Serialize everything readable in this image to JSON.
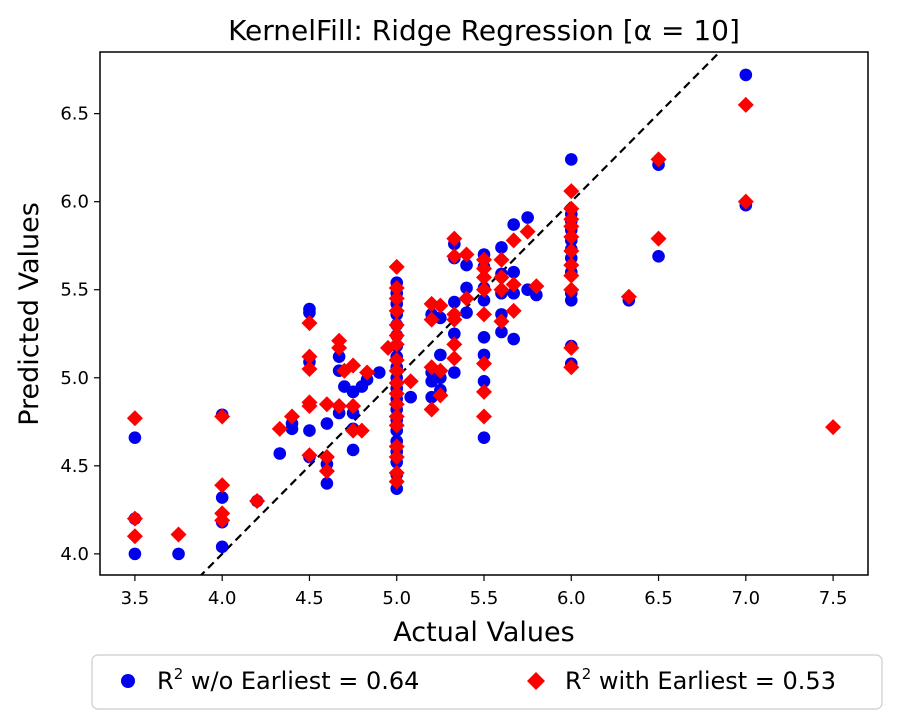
{
  "chart_data": {
    "type": "scatter",
    "title": "KernelFill: Ridge Regression [α = 10]",
    "xlabel": "Actual Values",
    "ylabel": "Predicted Values",
    "xlim": [
      3.3,
      7.7
    ],
    "ylim": [
      3.88,
      6.85
    ],
    "xticks": [
      "3.5",
      "4.0",
      "4.5",
      "5.0",
      "5.5",
      "6.0",
      "6.5",
      "7.0",
      "7.5"
    ],
    "yticks": [
      "4.0",
      "4.5",
      "5.0",
      "5.5",
      "6.0",
      "6.5"
    ],
    "reference_line": "y = x (dashed, black)",
    "grid": false,
    "legend_placement": "below plot",
    "legend": [
      {
        "pre": "R",
        "sup": "2",
        "post": " w/o Earliest = 0.64",
        "marker": "circle",
        "color": "#0000ee"
      },
      {
        "pre": "R",
        "sup": "2",
        "post": " with Earliest = 0.53",
        "marker": "diamond",
        "color": "#ff0000"
      }
    ],
    "series": [
      {
        "name": "R² w/o Earliest = 0.64",
        "marker": "circle",
        "color": "#0000ee",
        "points": [
          [
            3.5,
            4.0
          ],
          [
            3.5,
            4.2
          ],
          [
            3.5,
            4.66
          ],
          [
            3.75,
            4.0
          ],
          [
            4.0,
            4.04
          ],
          [
            4.0,
            4.18
          ],
          [
            4.0,
            4.32
          ],
          [
            4.0,
            4.79
          ],
          [
            4.2,
            4.3
          ],
          [
            4.33,
            4.57
          ],
          [
            4.4,
            4.71
          ],
          [
            4.4,
            4.74
          ],
          [
            4.5,
            4.55
          ],
          [
            4.5,
            4.7
          ],
          [
            4.5,
            5.09
          ],
          [
            4.5,
            5.37
          ],
          [
            4.5,
            5.39
          ],
          [
            4.6,
            4.4
          ],
          [
            4.6,
            4.51
          ],
          [
            4.6,
            4.74
          ],
          [
            4.67,
            4.8
          ],
          [
            4.67,
            5.04
          ],
          [
            4.67,
            5.12
          ],
          [
            4.7,
            4.95
          ],
          [
            4.75,
            4.59
          ],
          [
            4.75,
            4.71
          ],
          [
            4.75,
            4.8
          ],
          [
            4.75,
            4.92
          ],
          [
            4.8,
            4.95
          ],
          [
            4.83,
            4.99
          ],
          [
            4.9,
            5.03
          ],
          [
            5.0,
            4.37
          ],
          [
            5.0,
            4.45
          ],
          [
            5.0,
            4.52
          ],
          [
            5.0,
            4.58
          ],
          [
            5.0,
            4.64
          ],
          [
            5.0,
            4.7
          ],
          [
            5.0,
            4.76
          ],
          [
            5.0,
            4.82
          ],
          [
            5.0,
            4.88
          ],
          [
            5.0,
            4.94
          ],
          [
            5.0,
            5.0
          ],
          [
            5.0,
            5.06
          ],
          [
            5.0,
            5.12
          ],
          [
            5.0,
            5.18
          ],
          [
            5.0,
            5.24
          ],
          [
            5.0,
            5.3
          ],
          [
            5.0,
            5.36
          ],
          [
            5.0,
            5.42
          ],
          [
            5.0,
            5.48
          ],
          [
            5.0,
            5.54
          ],
          [
            5.08,
            4.89
          ],
          [
            5.2,
            4.89
          ],
          [
            5.2,
            4.98
          ],
          [
            5.2,
            5.03
          ],
          [
            5.2,
            5.36
          ],
          [
            5.25,
            4.93
          ],
          [
            5.25,
            5.0
          ],
          [
            5.25,
            5.13
          ],
          [
            5.25,
            5.34
          ],
          [
            5.33,
            5.03
          ],
          [
            5.33,
            5.25
          ],
          [
            5.33,
            5.43
          ],
          [
            5.33,
            5.68
          ],
          [
            5.33,
            5.76
          ],
          [
            5.4,
            5.37
          ],
          [
            5.4,
            5.51
          ],
          [
            5.4,
            5.64
          ],
          [
            5.5,
            4.66
          ],
          [
            5.5,
            4.98
          ],
          [
            5.5,
            5.13
          ],
          [
            5.5,
            5.23
          ],
          [
            5.5,
            5.44
          ],
          [
            5.5,
            5.51
          ],
          [
            5.5,
            5.63
          ],
          [
            5.5,
            5.7
          ],
          [
            5.6,
            5.26
          ],
          [
            5.6,
            5.36
          ],
          [
            5.6,
            5.48
          ],
          [
            5.6,
            5.59
          ],
          [
            5.6,
            5.74
          ],
          [
            5.67,
            5.22
          ],
          [
            5.67,
            5.48
          ],
          [
            5.67,
            5.6
          ],
          [
            5.67,
            5.87
          ],
          [
            5.75,
            5.5
          ],
          [
            5.75,
            5.91
          ],
          [
            5.8,
            5.47
          ],
          [
            6.0,
            5.08
          ],
          [
            6.0,
            5.18
          ],
          [
            6.0,
            5.44
          ],
          [
            6.0,
            5.48
          ],
          [
            6.0,
            5.6
          ],
          [
            6.0,
            5.68
          ],
          [
            6.0,
            5.73
          ],
          [
            6.0,
            5.78
          ],
          [
            6.0,
            5.84
          ],
          [
            6.0,
            5.89
          ],
          [
            6.0,
            5.93
          ],
          [
            6.0,
            6.24
          ],
          [
            6.33,
            5.44
          ],
          [
            6.5,
            5.69
          ],
          [
            6.5,
            6.21
          ],
          [
            7.0,
            5.98
          ],
          [
            7.0,
            6.72
          ]
        ]
      },
      {
        "name": "R² with Earliest = 0.53",
        "marker": "diamond",
        "color": "#ff0000",
        "points": [
          [
            3.5,
            4.1
          ],
          [
            3.5,
            4.2
          ],
          [
            3.5,
            4.77
          ],
          [
            3.75,
            4.11
          ],
          [
            4.0,
            4.19
          ],
          [
            4.0,
            4.23
          ],
          [
            4.0,
            4.39
          ],
          [
            4.0,
            4.78
          ],
          [
            4.2,
            4.3
          ],
          [
            4.33,
            4.71
          ],
          [
            4.4,
            4.78
          ],
          [
            4.5,
            4.56
          ],
          [
            4.5,
            4.84
          ],
          [
            4.5,
            4.86
          ],
          [
            4.5,
            5.05
          ],
          [
            4.5,
            5.12
          ],
          [
            4.5,
            5.31
          ],
          [
            4.6,
            4.47
          ],
          [
            4.6,
            4.55
          ],
          [
            4.6,
            4.85
          ],
          [
            4.67,
            4.84
          ],
          [
            4.67,
            5.17
          ],
          [
            4.67,
            5.21
          ],
          [
            4.7,
            5.04
          ],
          [
            4.75,
            4.7
          ],
          [
            4.75,
            4.84
          ],
          [
            4.75,
            5.07
          ],
          [
            4.8,
            4.7
          ],
          [
            4.83,
            5.03
          ],
          [
            4.95,
            5.17
          ],
          [
            5.0,
            4.41
          ],
          [
            5.0,
            4.46
          ],
          [
            5.0,
            4.55
          ],
          [
            5.0,
            4.61
          ],
          [
            5.0,
            4.73
          ],
          [
            5.0,
            4.78
          ],
          [
            5.0,
            4.85
          ],
          [
            5.0,
            4.91
          ],
          [
            5.0,
            4.97
          ],
          [
            5.0,
            5.04
          ],
          [
            5.0,
            5.1
          ],
          [
            5.0,
            5.19
          ],
          [
            5.0,
            5.24
          ],
          [
            5.0,
            5.3
          ],
          [
            5.0,
            5.38
          ],
          [
            5.0,
            5.45
          ],
          [
            5.0,
            5.51
          ],
          [
            5.0,
            5.63
          ],
          [
            5.08,
            4.98
          ],
          [
            5.2,
            4.82
          ],
          [
            5.2,
            5.06
          ],
          [
            5.2,
            5.33
          ],
          [
            5.2,
            5.42
          ],
          [
            5.25,
            4.9
          ],
          [
            5.25,
            5.04
          ],
          [
            5.25,
            5.41
          ],
          [
            5.33,
            5.11
          ],
          [
            5.33,
            5.19
          ],
          [
            5.33,
            5.33
          ],
          [
            5.33,
            5.36
          ],
          [
            5.33,
            5.69
          ],
          [
            5.33,
            5.79
          ],
          [
            5.4,
            5.45
          ],
          [
            5.4,
            5.7
          ],
          [
            5.5,
            4.78
          ],
          [
            5.5,
            4.92
          ],
          [
            5.5,
            5.08
          ],
          [
            5.5,
            5.36
          ],
          [
            5.5,
            5.5
          ],
          [
            5.5,
            5.57
          ],
          [
            5.5,
            5.62
          ],
          [
            5.5,
            5.67
          ],
          [
            5.6,
            5.32
          ],
          [
            5.6,
            5.5
          ],
          [
            5.6,
            5.57
          ],
          [
            5.6,
            5.67
          ],
          [
            5.67,
            5.38
          ],
          [
            5.67,
            5.53
          ],
          [
            5.67,
            5.78
          ],
          [
            5.75,
            5.83
          ],
          [
            5.8,
            5.52
          ],
          [
            6.0,
            5.06
          ],
          [
            6.0,
            5.17
          ],
          [
            6.0,
            5.5
          ],
          [
            6.0,
            5.58
          ],
          [
            6.0,
            5.64
          ],
          [
            6.0,
            5.72
          ],
          [
            6.0,
            5.8
          ],
          [
            6.0,
            5.86
          ],
          [
            6.0,
            5.9
          ],
          [
            6.0,
            5.96
          ],
          [
            6.0,
            6.06
          ],
          [
            6.33,
            5.46
          ],
          [
            6.5,
            5.79
          ],
          [
            6.5,
            6.24
          ],
          [
            7.0,
            6.0
          ],
          [
            7.0,
            6.55
          ],
          [
            7.5,
            4.72
          ]
        ]
      }
    ]
  }
}
